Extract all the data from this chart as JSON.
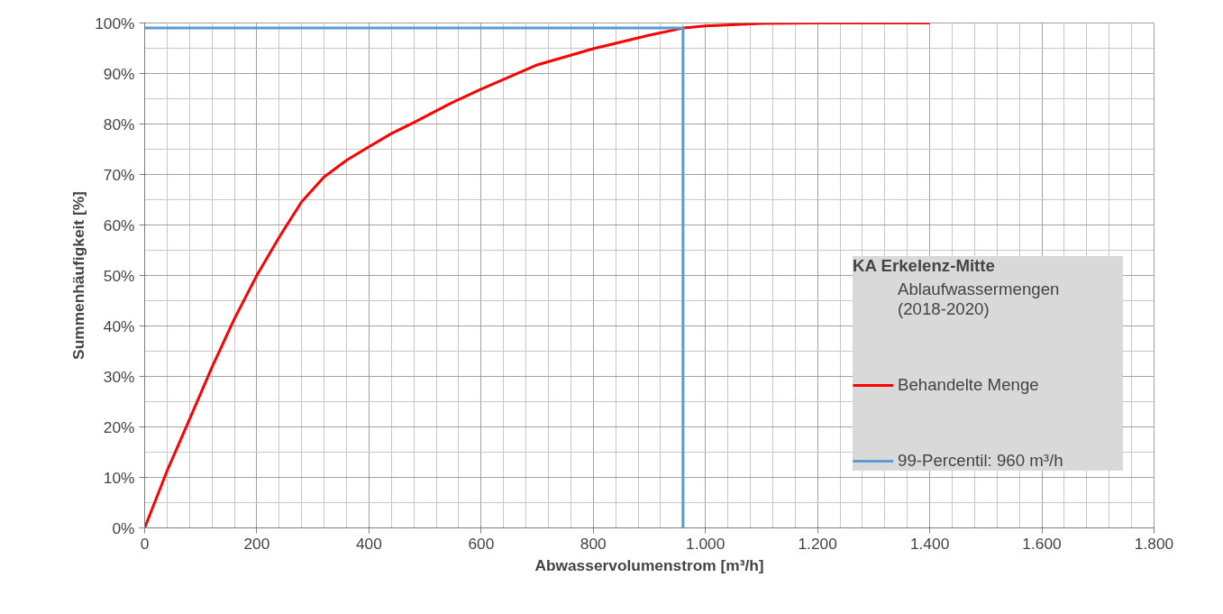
{
  "chart_data": {
    "type": "line",
    "title": "KA Erkelenz-Mitte",
    "subtitle": "Ablaufwassermengen\n(2018-2020)",
    "xlabel": "Abwasservolumenstrom [m³/h]",
    "ylabel": "Summenhäufigkeit [%]",
    "xlim": [
      0,
      1800
    ],
    "ylim": [
      0,
      100
    ],
    "xticks": [
      0,
      200,
      400,
      600,
      800,
      {
        "value": 1000,
        "label": "1.000"
      },
      {
        "value": 1200,
        "label": "1.200"
      },
      {
        "value": 1400,
        "label": "1.400"
      },
      {
        "value": 1600,
        "label": "1.600"
      },
      {
        "value": 1800,
        "label": "1.800"
      }
    ],
    "yticks": [
      {
        "value": 0,
        "label": "0%"
      },
      {
        "value": 10,
        "label": "10%"
      },
      {
        "value": 20,
        "label": "20%"
      },
      {
        "value": 30,
        "label": "30%"
      },
      {
        "value": 40,
        "label": "40%"
      },
      {
        "value": 50,
        "label": "50%"
      },
      {
        "value": 60,
        "label": "60%"
      },
      {
        "value": 70,
        "label": "70%"
      },
      {
        "value": 80,
        "label": "80%"
      },
      {
        "value": 90,
        "label": "90%"
      },
      {
        "value": 100,
        "label": "100%"
      }
    ],
    "grid": true,
    "legend": "right",
    "line_style": "solid",
    "marker": "none",
    "series": [
      {
        "name": "Behandelte Menge",
        "color": "#ff0000",
        "x": [
          0,
          40,
          80,
          120,
          160,
          200,
          240,
          280,
          320,
          360,
          400,
          440,
          480,
          544,
          600,
          700,
          800,
          900,
          960,
          1000,
          1100,
          1200,
          1400
        ],
        "values": [
          0,
          11.3,
          21.5,
          31.8,
          41.4,
          50,
          57.6,
          64.6,
          69.5,
          72.8,
          75.5,
          78.1,
          80.3,
          84,
          86.9,
          91.7,
          94.9,
          97.6,
          99,
          99.4,
          99.9,
          100,
          100
        ]
      },
      {
        "name": "99-Percentil: 960 m³/h",
        "color": "#5b9bd5",
        "x": [
          0,
          960,
          960
        ],
        "values": [
          99,
          99,
          0
        ]
      }
    ]
  }
}
